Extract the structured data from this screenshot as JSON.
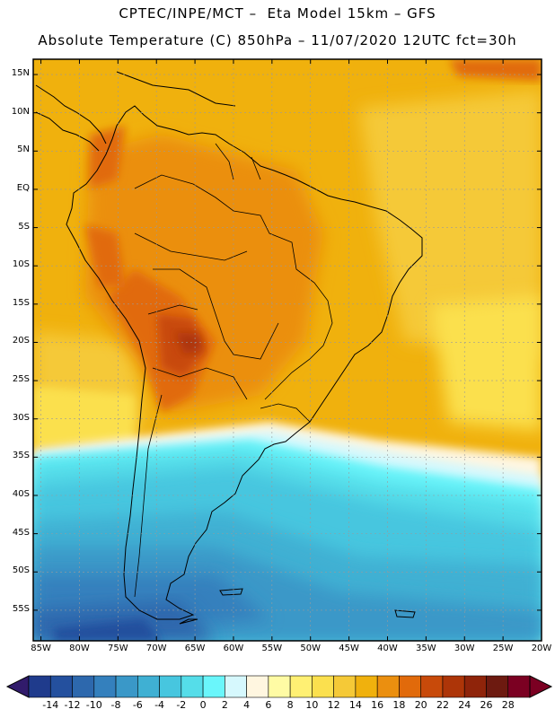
{
  "header": {
    "title_line1": "CPTEC/INPE/MCT –  Eta Model 15km – GFS",
    "title_line2": "Absolute Temperature (C) 850hPa – 11/07/2020 12UTC fct=30h"
  },
  "map": {
    "extent": {
      "lon_min": -86,
      "lon_max": -20,
      "lat_min": -59,
      "lat_max": 17
    },
    "lat_ticks": [
      {
        "value": 15,
        "label": "15N"
      },
      {
        "value": 10,
        "label": "10N"
      },
      {
        "value": 5,
        "label": "5N"
      },
      {
        "value": 0,
        "label": "EQ"
      },
      {
        "value": -5,
        "label": "5S"
      },
      {
        "value": -10,
        "label": "10S"
      },
      {
        "value": -15,
        "label": "15S"
      },
      {
        "value": -20,
        "label": "20S"
      },
      {
        "value": -25,
        "label": "25S"
      },
      {
        "value": -30,
        "label": "30S"
      },
      {
        "value": -35,
        "label": "35S"
      },
      {
        "value": -40,
        "label": "40S"
      },
      {
        "value": -45,
        "label": "45S"
      },
      {
        "value": -50,
        "label": "50S"
      },
      {
        "value": -55,
        "label": "55S"
      }
    ],
    "lon_ticks": [
      {
        "value": -85,
        "label": "85W"
      },
      {
        "value": -80,
        "label": "80W"
      },
      {
        "value": -75,
        "label": "75W"
      },
      {
        "value": -70,
        "label": "70W"
      },
      {
        "value": -65,
        "label": "65W"
      },
      {
        "value": -60,
        "label": "60W"
      },
      {
        "value": -55,
        "label": "55W"
      },
      {
        "value": -50,
        "label": "50W"
      },
      {
        "value": -45,
        "label": "45W"
      },
      {
        "value": -40,
        "label": "40W"
      },
      {
        "value": -35,
        "label": "35W"
      },
      {
        "value": -30,
        "label": "30W"
      },
      {
        "value": -25,
        "label": "25W"
      },
      {
        "value": -20,
        "label": "20W"
      }
    ]
  },
  "colorbar": {
    "labels": [
      "-14",
      "-12",
      "-10",
      "-8",
      "-6",
      "-4",
      "-2",
      "0",
      "2",
      "4",
      "6",
      "8",
      "10",
      "12",
      "14",
      "16",
      "18",
      "20",
      "22",
      "24",
      "26",
      "28"
    ],
    "colors": [
      "#1f3b8c",
      "#24509e",
      "#2d68ad",
      "#3480bd",
      "#3a98c8",
      "#3fb0d3",
      "#47c6df",
      "#55dde9",
      "#6af6fb",
      "#d6f8fd",
      "#fff6e0",
      "#fffba4",
      "#fff073",
      "#fbe04e",
      "#f5c937",
      "#f0b10d",
      "#eb8f0f",
      "#e16a0b",
      "#c84a0a",
      "#ad3508",
      "#8f240a",
      "#6d1a10",
      "#7b0022"
    ],
    "low_arrow_color": "#311b6b",
    "high_arrow_color": "#7b0022"
  }
}
